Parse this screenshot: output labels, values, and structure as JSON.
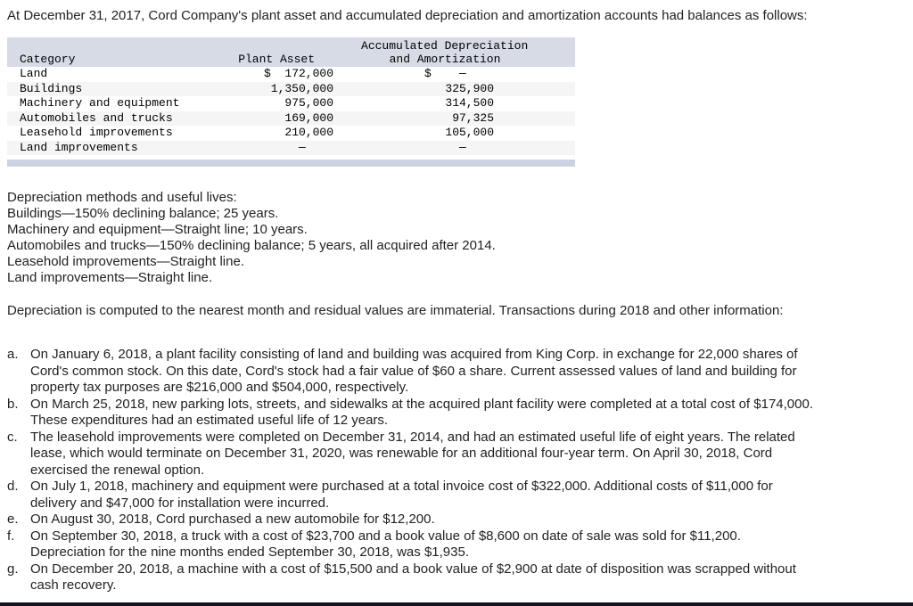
{
  "intro": "At December 31, 2017, Cord Company's plant asset and accumulated depreciation and amortization accounts had balances as follows:",
  "table": {
    "header": {
      "col1": "Category",
      "col2": "Plant Asset",
      "col3_line1": "Accumulated Depreciation",
      "col3_line2": "and Amortization"
    },
    "rows": [
      {
        "category": "Land",
        "plant": "$  172,000",
        "accum": "$    —    "
      },
      {
        "category": "Buildings",
        "plant": "1,350,000",
        "accum": "325,900"
      },
      {
        "category": "Machinery and equipment",
        "plant": "975,000",
        "accum": "314,500"
      },
      {
        "category": "Automobiles and trucks",
        "plant": "169,000",
        "accum": "97,325"
      },
      {
        "category": "Leasehold improvements",
        "plant": "210,000",
        "accum": "105,000"
      },
      {
        "category": "Land improvements",
        "plant": "—    ",
        "accum": "—    "
      }
    ],
    "header_bg": "#d7dbe6",
    "footer_bar_color": "#ccd3e0",
    "alt_row_color": "#f5f5f6"
  },
  "methods": {
    "lines": [
      "Depreciation methods and useful lives:",
      "Buildings—150% declining balance; 25 years.",
      "Machinery and equipment—Straight line; 10 years.",
      "Automobiles and trucks—150% declining balance; 5 years, all acquired after 2014.",
      "Leasehold improvements—Straight line.",
      "Land improvements—Straight line."
    ]
  },
  "note": "Depreciation is computed to the nearest month and residual values are immaterial. Transactions during 2018 and other information:",
  "transactions": [
    {
      "label": "a.",
      "lines": [
        "On January 6, 2018, a plant facility consisting of land and building was acquired from King Corp. in exchange for 22,000 shares of",
        "Cord's common stock. On this date, Cord's stock had a fair value of $60 a share. Current assessed values of land and building for",
        "property tax purposes are $216,000 and $504,000, respectively."
      ]
    },
    {
      "label": "b.",
      "lines": [
        "On March 25, 2018, new parking lots, streets, and sidewalks at the acquired plant facility were completed at a total cost of $174,000.",
        "These expenditures had an estimated useful life of 12 years."
      ]
    },
    {
      "label": "c.",
      "lines": [
        "The leasehold improvements were completed on December 31, 2014, and had an estimated useful life of eight years. The related",
        "lease, which would terminate on December 31, 2020, was renewable for an additional four-year term. On April 30, 2018, Cord",
        "exercised the renewal option."
      ]
    },
    {
      "label": "d.",
      "lines": [
        "On July 1, 2018, machinery and equipment were purchased at a total invoice cost of $322,000. Additional costs of $11,000 for",
        "delivery and $47,000 for installation were incurred."
      ]
    },
    {
      "label": "e.",
      "lines": [
        "On August 30, 2018, Cord purchased a new automobile for $12,200."
      ]
    },
    {
      "label": "f.",
      "lines": [
        "On September 30, 2018, a truck with a cost of $23,700 and a book value of $8,600 on date of sale was sold for $11,200.",
        "Depreciation for the nine months ended September 30, 2018, was $1,935."
      ]
    },
    {
      "label": "g.",
      "lines": [
        "On December 20, 2018, a machine with a cost of $15,500 and a book value of $2,900 at date of disposition was scrapped without",
        "cash recovery."
      ]
    }
  ]
}
